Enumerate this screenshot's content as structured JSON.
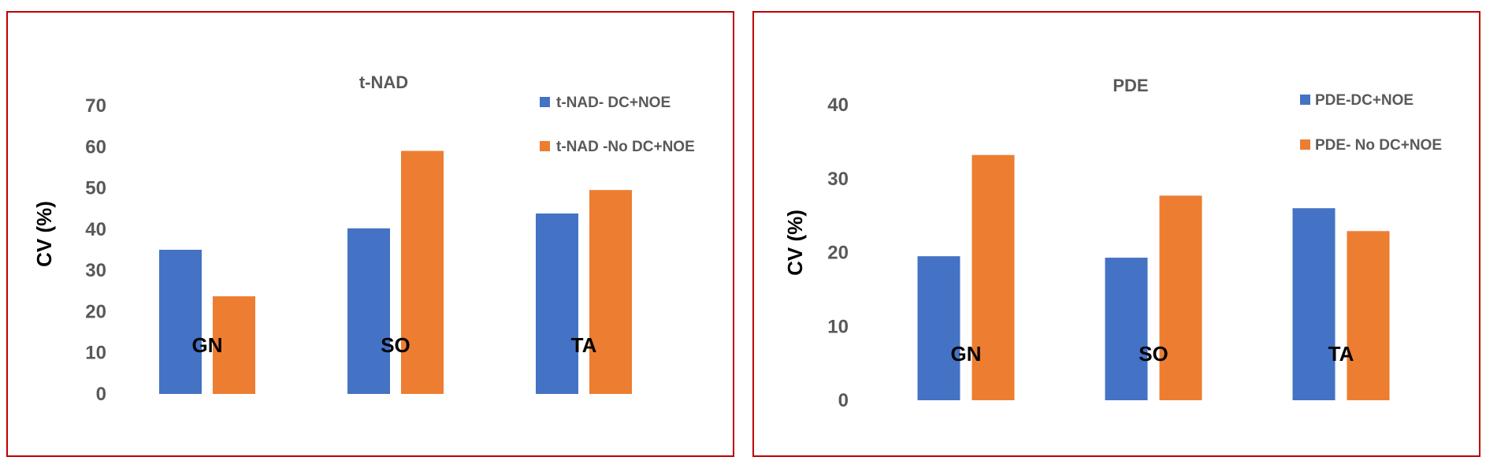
{
  "colors": {
    "series1": "#4472c4",
    "series2": "#ed7d31",
    "frame": "#c00000"
  },
  "chart_data": [
    {
      "type": "bar",
      "title": "t-NAD",
      "ylabel": "CV (%)",
      "xlabel": "",
      "categories": [
        "GN",
        "SO",
        "TA"
      ],
      "ylim": [
        0,
        70
      ],
      "yticks": [
        "0",
        "10",
        "20",
        "30",
        "40",
        "50",
        "60",
        "70"
      ],
      "yticks_values": [
        0,
        10,
        20,
        30,
        40,
        50,
        60,
        70
      ],
      "series": [
        {
          "name": "t-NAD- DC+NOE",
          "values": [
            35,
            40.2,
            43.8
          ]
        },
        {
          "name": "t-NAD -No DC+NOE",
          "values": [
            23.7,
            59,
            49.5
          ]
        }
      ]
    },
    {
      "type": "bar",
      "title": "PDE",
      "ylabel": "CV (%)",
      "xlabel": "",
      "categories": [
        "GN",
        "SO",
        "TA"
      ],
      "ylim": [
        0,
        40
      ],
      "yticks": [
        "0",
        "10",
        "20",
        "30",
        "40"
      ],
      "yticks_values": [
        0,
        10,
        20,
        30,
        40
      ],
      "series": [
        {
          "name": "PDE-DC+NOE",
          "values": [
            19.5,
            19.3,
            26
          ]
        },
        {
          "name": "PDE- No DC+NOE",
          "values": [
            33.2,
            27.7,
            22.9
          ]
        }
      ]
    }
  ]
}
